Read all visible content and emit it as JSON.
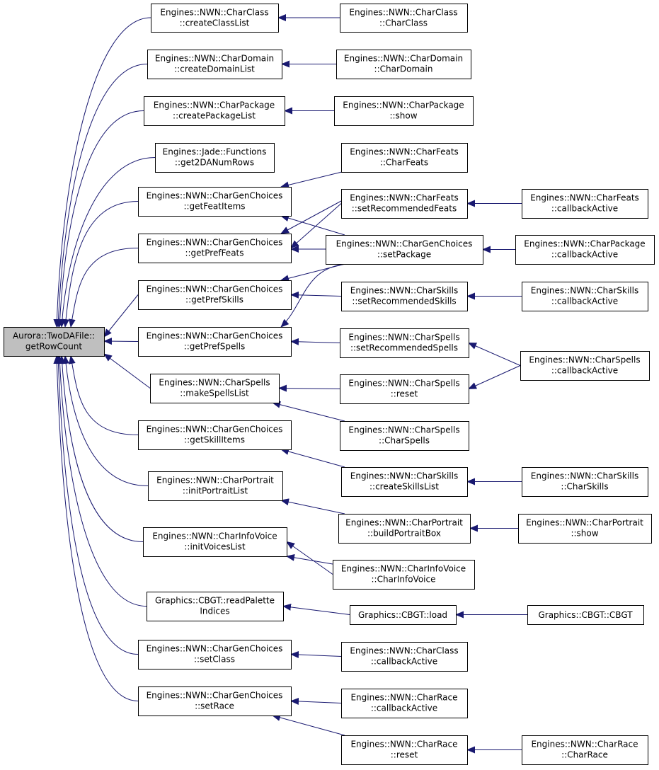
{
  "nodes": [
    {
      "lines": [
        "Aurora::TwoDAFile::",
        "getRowCount"
      ]
    },
    {
      "lines": [
        "Engines::NWN::CharClass",
        "::createClassList"
      ]
    },
    {
      "lines": [
        "Engines::NWN::CharDomain",
        "::createDomainList"
      ]
    },
    {
      "lines": [
        "Engines::NWN::CharPackage",
        "::createPackageList"
      ]
    },
    {
      "lines": [
        "Engines::Jade::Functions",
        "::get2DANumRows"
      ]
    },
    {
      "lines": [
        "Engines::NWN::CharGenChoices",
        "::getFeatItems"
      ]
    },
    {
      "lines": [
        "Engines::NWN::CharGenChoices",
        "::getPrefFeats"
      ]
    },
    {
      "lines": [
        "Engines::NWN::CharGenChoices",
        "::getPrefSkills"
      ]
    },
    {
      "lines": [
        "Engines::NWN::CharGenChoices",
        "::getPrefSpells"
      ]
    },
    {
      "lines": [
        "Engines::NWN::CharSpells",
        "::makeSpellsList"
      ]
    },
    {
      "lines": [
        "Engines::NWN::CharGenChoices",
        "::getSkillItems"
      ]
    },
    {
      "lines": [
        "Engines::NWN::CharPortrait",
        "::initPortraitList"
      ]
    },
    {
      "lines": [
        "Engines::NWN::CharInfoVoice",
        "::initVoicesList"
      ]
    },
    {
      "lines": [
        "Graphics::CBGT::readPalette",
        "Indices"
      ]
    },
    {
      "lines": [
        "Engines::NWN::CharGenChoices",
        "::setClass"
      ]
    },
    {
      "lines": [
        "Engines::NWN::CharGenChoices",
        "::setRace"
      ]
    },
    {
      "lines": [
        "Engines::NWN::CharClass",
        "::CharClass"
      ]
    },
    {
      "lines": [
        "Engines::NWN::CharDomain",
        "::CharDomain"
      ]
    },
    {
      "lines": [
        "Engines::NWN::CharPackage",
        "::show"
      ]
    },
    {
      "lines": [
        "Engines::NWN::CharFeats",
        "::CharFeats"
      ]
    },
    {
      "lines": [
        "Engines::NWN::CharFeats",
        "::setRecommendedFeats"
      ]
    },
    {
      "lines": [
        "Engines::NWN::CharGenChoices",
        "::setPackage"
      ]
    },
    {
      "lines": [
        "Engines::NWN::CharSkills",
        "::setRecommendedSkills"
      ]
    },
    {
      "lines": [
        "Engines::NWN::CharSpells",
        "::setRecommendedSpells"
      ]
    },
    {
      "lines": [
        "Engines::NWN::CharSpells",
        "::reset"
      ]
    },
    {
      "lines": [
        "Engines::NWN::CharSpells",
        "::CharSpells"
      ]
    },
    {
      "lines": [
        "Engines::NWN::CharSkills",
        "::createSkillsList"
      ]
    },
    {
      "lines": [
        "Engines::NWN::CharPortrait",
        "::buildPortraitBox"
      ]
    },
    {
      "lines": [
        "Engines::NWN::CharInfoVoice",
        "::CharInfoVoice"
      ]
    },
    {
      "lines": [
        "Graphics::CBGT::load"
      ]
    },
    {
      "lines": [
        "Engines::NWN::CharClass",
        "::callbackActive"
      ]
    },
    {
      "lines": [
        "Engines::NWN::CharRace",
        "::callbackActive"
      ]
    },
    {
      "lines": [
        "Engines::NWN::CharRace",
        "::reset"
      ]
    },
    {
      "lines": [
        "Engines::NWN::CharFeats",
        "::callbackActive"
      ]
    },
    {
      "lines": [
        "Engines::NWN::CharPackage",
        "::callbackActive"
      ]
    },
    {
      "lines": [
        "Engines::NWN::CharSkills",
        "::callbackActive"
      ]
    },
    {
      "lines": [
        "Engines::NWN::CharSpells",
        "::callbackActive"
      ]
    },
    {
      "lines": [
        "Engines::NWN::CharSkills",
        "::CharSkills"
      ]
    },
    {
      "lines": [
        "Engines::NWN::CharPortrait",
        "::show"
      ]
    },
    {
      "lines": [
        "Graphics::CBGT::CBGT"
      ]
    },
    {
      "lines": [
        "Engines::NWN::CharRace",
        "::CharRace"
      ]
    }
  ]
}
